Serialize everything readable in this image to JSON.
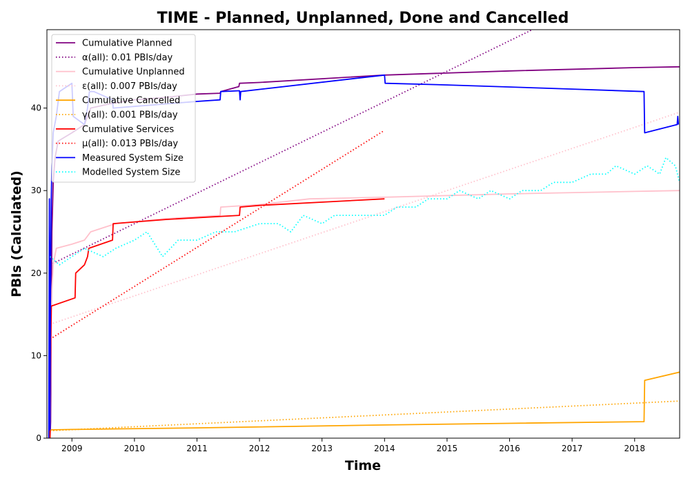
{
  "chart_data": {
    "type": "line",
    "title": "TIME - Planned, Unplanned, Done  and Cancelled",
    "xlabel": "Time",
    "ylabel": "PBIs (Calculated)",
    "xlim": [
      2008.6,
      2018.72
    ],
    "ylim": [
      0,
      49.5
    ],
    "x_ticks": [
      2009,
      2010,
      2011,
      2012,
      2013,
      2014,
      2015,
      2016,
      2017,
      2018
    ],
    "y_ticks": [
      0,
      10,
      20,
      30,
      40
    ],
    "grid": false,
    "legend": "top-left",
    "series": [
      {
        "name": "Cumulative Planned",
        "style": "solid",
        "color": "#800080",
        "points": [
          [
            2008.65,
            0
          ],
          [
            2008.66,
            2
          ],
          [
            2008.67,
            15
          ],
          [
            2008.68,
            25
          ],
          [
            2008.7,
            31
          ],
          [
            2008.73,
            34
          ],
          [
            2008.78,
            36
          ],
          [
            2009.0,
            37
          ],
          [
            2009.2,
            38
          ],
          [
            2009.3,
            40
          ],
          [
            2009.6,
            40.5
          ],
          [
            2010.0,
            41
          ],
          [
            2010.5,
            41.3
          ],
          [
            2011.0,
            41.7
          ],
          [
            2011.37,
            41.8
          ],
          [
            2011.38,
            42
          ],
          [
            2011.67,
            42.6
          ],
          [
            2011.68,
            43
          ],
          [
            2012.0,
            43.1
          ],
          [
            2014.0,
            44
          ],
          [
            2016.0,
            44.5
          ],
          [
            2018.0,
            44.9
          ],
          [
            2018.72,
            45
          ]
        ]
      },
      {
        "name": "α(all): 0.01 PBIs/day",
        "style": "dotted",
        "color": "#800080",
        "points": [
          [
            2008.65,
            21
          ],
          [
            2016.5,
            50
          ]
        ]
      },
      {
        "name": "Cumulative Unplanned",
        "style": "solid",
        "color": "#ffc0cb",
        "points": [
          [
            2008.65,
            0
          ],
          [
            2008.66,
            8
          ],
          [
            2008.68,
            18
          ],
          [
            2008.7,
            21
          ],
          [
            2008.75,
            23
          ],
          [
            2009.0,
            23.5
          ],
          [
            2009.2,
            24
          ],
          [
            2009.3,
            25
          ],
          [
            2009.7,
            26
          ],
          [
            2010.5,
            26.6
          ],
          [
            2011.37,
            27
          ],
          [
            2011.38,
            28
          ],
          [
            2012.0,
            28.3
          ],
          [
            2012.8,
            29
          ],
          [
            2014.0,
            29.2
          ],
          [
            2016.0,
            29.6
          ],
          [
            2018.0,
            29.9
          ],
          [
            2018.72,
            30
          ]
        ]
      },
      {
        "name": "ε(all): 0.007 PBIs/day",
        "style": "dotted",
        "color": "#ffc0cb",
        "points": [
          [
            2008.65,
            13.8
          ],
          [
            2018.72,
            39.5
          ]
        ]
      },
      {
        "name": "Cumulative Cancelled",
        "style": "solid",
        "color": "#ffa500",
        "points": [
          [
            2008.65,
            1
          ],
          [
            2009.0,
            1.05
          ],
          [
            2011.0,
            1.25
          ],
          [
            2014.0,
            1.6
          ],
          [
            2016.0,
            1.8
          ],
          [
            2018.15,
            2
          ],
          [
            2018.16,
            7
          ],
          [
            2018.72,
            8
          ]
        ]
      },
      {
        "name": "γ(all): 0.001 PBIs/day",
        "style": "dotted",
        "color": "#ffa500",
        "points": [
          [
            2008.65,
            0.9
          ],
          [
            2018.72,
            4.5
          ]
        ]
      },
      {
        "name": "Cumulative Services",
        "style": "solid",
        "color": "#ff0000",
        "points": [
          [
            2008.65,
            0
          ],
          [
            2008.66,
            10
          ],
          [
            2008.67,
            16
          ],
          [
            2009.05,
            17
          ],
          [
            2009.06,
            20
          ],
          [
            2009.2,
            21
          ],
          [
            2009.25,
            22
          ],
          [
            2009.27,
            23
          ],
          [
            2009.65,
            24
          ],
          [
            2009.66,
            26
          ],
          [
            2010.5,
            26.5
          ],
          [
            2011.68,
            27
          ],
          [
            2011.69,
            28
          ],
          [
            2012.0,
            28.2
          ],
          [
            2014.0,
            29
          ]
        ]
      },
      {
        "name": "μ(all): 0.013 PBIs/day",
        "style": "dotted",
        "color": "#ff0000",
        "points": [
          [
            2008.65,
            12
          ],
          [
            2014.0,
            37.3
          ]
        ]
      },
      {
        "name": "Measured System Size",
        "style": "solid",
        "color": "#0000ff",
        "points": [
          [
            2008.63,
            0
          ],
          [
            2008.64,
            29
          ],
          [
            2008.65,
            1
          ],
          [
            2008.66,
            22
          ],
          [
            2008.67,
            29
          ],
          [
            2008.68,
            33
          ],
          [
            2008.7,
            37
          ],
          [
            2008.75,
            39
          ],
          [
            2008.8,
            42
          ],
          [
            2009.0,
            43
          ],
          [
            2009.02,
            39
          ],
          [
            2009.2,
            38
          ],
          [
            2009.25,
            40
          ],
          [
            2009.28,
            42
          ],
          [
            2009.35,
            42
          ],
          [
            2009.5,
            41.5
          ],
          [
            2009.65,
            41
          ],
          [
            2009.66,
            40
          ],
          [
            2010.0,
            40.2
          ],
          [
            2010.5,
            40.5
          ],
          [
            2011.0,
            40.8
          ],
          [
            2011.37,
            41
          ],
          [
            2011.38,
            42
          ],
          [
            2011.68,
            42.1
          ],
          [
            2011.69,
            41
          ],
          [
            2011.7,
            42
          ],
          [
            2014.0,
            44
          ],
          [
            2014.01,
            43
          ],
          [
            2015.0,
            42.8
          ],
          [
            2017.0,
            42.3
          ],
          [
            2018.15,
            42
          ],
          [
            2018.16,
            37
          ],
          [
            2018.68,
            38
          ],
          [
            2018.69,
            39
          ],
          [
            2018.7,
            38
          ]
        ]
      },
      {
        "name": "Modelled System Size",
        "style": "dotted",
        "color": "#00ffff",
        "points": [
          [
            2008.65,
            22
          ],
          [
            2008.8,
            21
          ],
          [
            2009.0,
            22
          ],
          [
            2009.2,
            23
          ],
          [
            2009.5,
            22
          ],
          [
            2009.7,
            23
          ],
          [
            2010.0,
            24
          ],
          [
            2010.2,
            25
          ],
          [
            2010.45,
            22
          ],
          [
            2010.7,
            24
          ],
          [
            2011.0,
            24
          ],
          [
            2011.3,
            25
          ],
          [
            2011.6,
            25
          ],
          [
            2012.0,
            26
          ],
          [
            2012.3,
            26
          ],
          [
            2012.5,
            25
          ],
          [
            2012.7,
            27
          ],
          [
            2013.0,
            26
          ],
          [
            2013.2,
            27
          ],
          [
            2013.5,
            27
          ],
          [
            2014.0,
            27
          ],
          [
            2014.2,
            28
          ],
          [
            2014.5,
            28
          ],
          [
            2014.7,
            29
          ],
          [
            2015.0,
            29
          ],
          [
            2015.2,
            30
          ],
          [
            2015.5,
            29
          ],
          [
            2015.7,
            30
          ],
          [
            2016.0,
            29
          ],
          [
            2016.2,
            30
          ],
          [
            2016.5,
            30
          ],
          [
            2016.7,
            31
          ],
          [
            2017.0,
            31
          ],
          [
            2017.3,
            32
          ],
          [
            2017.55,
            32
          ],
          [
            2017.7,
            33
          ],
          [
            2018.0,
            32
          ],
          [
            2018.2,
            33
          ],
          [
            2018.4,
            32
          ],
          [
            2018.5,
            34
          ],
          [
            2018.65,
            33
          ],
          [
            2018.72,
            31
          ]
        ]
      }
    ]
  }
}
